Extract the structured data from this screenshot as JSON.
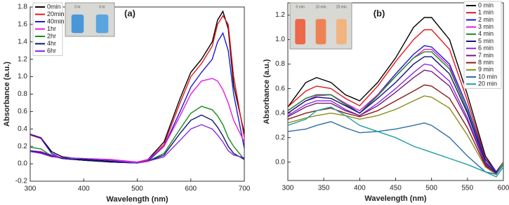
{
  "chart_data": [
    {
      "type": "line",
      "title": "(a)",
      "x_label": "Wavelength (nm)",
      "y_label": "Absorbance (a.u.)",
      "x": [
        300,
        320,
        340,
        360,
        400,
        450,
        500,
        520,
        550,
        580,
        600,
        620,
        640,
        650,
        660,
        670,
        680,
        700
      ],
      "xlim": [
        300,
        700
      ],
      "xticks": [
        300,
        400,
        500,
        600,
        700
      ],
      "ylim": [
        -0.2,
        1.8
      ],
      "yticks": [
        -0.2,
        {
          "value": 0,
          "label": "0.0"
        },
        0.2,
        0.4,
        0.6,
        0.8,
        {
          "value": 1,
          "label": "1.0"
        },
        1.2,
        1.4,
        1.6,
        1.8
      ],
      "inset_labels": [
        "0 hr",
        "6 hr"
      ],
      "series": [
        {
          "name": "0min",
          "color": "#000000",
          "values": [
            0.34,
            0.3,
            0.14,
            0.08,
            0.05,
            0.03,
            0.01,
            0.05,
            0.25,
            0.75,
            1.05,
            1.2,
            1.4,
            1.65,
            1.75,
            1.55,
            0.9,
            0.35
          ]
        },
        {
          "name": "20min",
          "color": "#e3161b",
          "values": [
            0.33,
            0.29,
            0.12,
            0.06,
            0.04,
            0.02,
            0.01,
            0.04,
            0.22,
            0.7,
            1.0,
            1.15,
            1.35,
            1.6,
            1.7,
            1.6,
            1.0,
            0.3
          ]
        },
        {
          "name": "40min",
          "color": "#1a1ad6",
          "values": [
            0.34,
            0.3,
            0.12,
            0.06,
            0.04,
            0.02,
            0.01,
            0.03,
            0.2,
            0.6,
            0.88,
            1.05,
            1.2,
            1.4,
            1.5,
            1.3,
            0.8,
            0.18
          ]
        },
        {
          "name": "1hr",
          "color": "#e01ee0",
          "values": [
            0.15,
            0.14,
            0.1,
            0.07,
            0.06,
            0.05,
            0.02,
            0.05,
            0.2,
            0.55,
            0.8,
            0.95,
            0.98,
            0.95,
            0.85,
            0.7,
            0.5,
            0.25
          ]
        },
        {
          "name": "2hr",
          "color": "#1a8a1a",
          "values": [
            0.19,
            0.17,
            0.09,
            0.06,
            0.04,
            0.02,
            0.01,
            0.03,
            0.12,
            0.4,
            0.58,
            0.66,
            0.62,
            0.55,
            0.45,
            0.3,
            0.2,
            0.05
          ]
        },
        {
          "name": "4hr",
          "color": "#12127a",
          "values": [
            0.15,
            0.13,
            0.09,
            0.06,
            0.04,
            0.02,
            0.01,
            0.03,
            0.1,
            0.35,
            0.5,
            0.56,
            0.5,
            0.42,
            0.32,
            0.2,
            0.12,
            0.05
          ]
        },
        {
          "name": "6hr",
          "color": "#8a2be2",
          "values": [
            0.14,
            0.12,
            0.08,
            0.07,
            0.06,
            0.04,
            0.01,
            0.03,
            0.08,
            0.27,
            0.4,
            0.45,
            0.4,
            0.33,
            0.25,
            0.15,
            0.1,
            0.07
          ]
        }
      ]
    },
    {
      "type": "line",
      "title": "(b)",
      "x_label": "Wavelength (nm)",
      "y_label": "Absorbance (a.u.)",
      "x": [
        300,
        325,
        340,
        360,
        380,
        400,
        425,
        450,
        475,
        490,
        500,
        525,
        550,
        575,
        590,
        600
      ],
      "xlim": [
        300,
        600
      ],
      "xticks": [
        300,
        350,
        400,
        450,
        500,
        550,
        600
      ],
      "ylim": [
        -0.15,
        1.3
      ],
      "yticks": [
        {
          "value": 0,
          "label": "0.0"
        },
        0.2,
        0.4,
        0.6,
        0.8,
        {
          "value": 1,
          "label": "1.0"
        },
        1.2
      ],
      "inset_labels": [
        "0 min",
        "10 min",
        "20 min"
      ],
      "series": [
        {
          "name": "0 min",
          "color": "#000000",
          "values": [
            0.45,
            0.65,
            0.69,
            0.65,
            0.55,
            0.5,
            0.65,
            0.85,
            1.1,
            1.18,
            1.18,
            1.0,
            0.55,
            0.05,
            -0.08,
            0.0
          ]
        },
        {
          "name": "1 min",
          "color": "#e3161b",
          "values": [
            0.45,
            0.58,
            0.62,
            0.6,
            0.52,
            0.46,
            0.62,
            0.82,
            1.0,
            1.08,
            1.08,
            0.92,
            0.5,
            0.03,
            -0.08,
            0.0
          ]
        },
        {
          "name": "2 min",
          "color": "#1a1ad6",
          "values": [
            0.42,
            0.52,
            0.55,
            0.55,
            0.48,
            0.4,
            0.55,
            0.72,
            0.88,
            0.95,
            0.94,
            0.8,
            0.45,
            0.02,
            -0.08,
            0.0
          ]
        },
        {
          "name": "3 min",
          "color": "#e01ee0",
          "values": [
            0.4,
            0.5,
            0.54,
            0.55,
            0.48,
            0.42,
            0.55,
            0.7,
            0.85,
            0.92,
            0.92,
            0.78,
            0.42,
            0.0,
            -0.09,
            0.0
          ]
        },
        {
          "name": "4 min",
          "color": "#1a8a1a",
          "values": [
            0.42,
            0.52,
            0.55,
            0.55,
            0.47,
            0.4,
            0.54,
            0.7,
            0.85,
            0.9,
            0.9,
            0.76,
            0.42,
            0.0,
            -0.09,
            0.0
          ]
        },
        {
          "name": "5 min",
          "color": "#12127a",
          "values": [
            0.4,
            0.5,
            0.53,
            0.52,
            0.46,
            0.4,
            0.52,
            0.65,
            0.8,
            0.86,
            0.86,
            0.72,
            0.4,
            0.0,
            -0.09,
            0.0
          ]
        },
        {
          "name": "6 min",
          "color": "#8a2be2",
          "values": [
            0.38,
            0.47,
            0.5,
            0.5,
            0.43,
            0.38,
            0.48,
            0.6,
            0.73,
            0.8,
            0.79,
            0.66,
            0.36,
            -0.01,
            -0.1,
            0.0
          ]
        },
        {
          "name": "7 min",
          "color": "#7a1a7a",
          "values": [
            0.37,
            0.45,
            0.48,
            0.48,
            0.42,
            0.38,
            0.46,
            0.57,
            0.69,
            0.75,
            0.74,
            0.62,
            0.34,
            -0.02,
            -0.1,
            0.0
          ]
        },
        {
          "name": "8 min",
          "color": "#8b1a1a",
          "values": [
            0.35,
            0.4,
            0.42,
            0.44,
            0.4,
            0.37,
            0.42,
            0.5,
            0.58,
            0.63,
            0.62,
            0.52,
            0.28,
            -0.03,
            -0.1,
            0.0
          ]
        },
        {
          "name": "9 min",
          "color": "#8b8b1a",
          "values": [
            0.32,
            0.36,
            0.38,
            0.4,
            0.38,
            0.35,
            0.38,
            0.43,
            0.5,
            0.54,
            0.53,
            0.44,
            0.22,
            -0.04,
            -0.1,
            0.0
          ]
        },
        {
          "name": "10 min",
          "color": "#2e6da4",
          "values": [
            0.25,
            0.27,
            0.3,
            0.33,
            0.28,
            0.24,
            0.25,
            0.27,
            0.3,
            0.32,
            0.3,
            0.2,
            0.05,
            -0.08,
            -0.1,
            -0.02
          ]
        },
        {
          "name": "20 min",
          "color": "#1fa0a0",
          "values": [
            0.3,
            0.35,
            0.42,
            0.45,
            0.38,
            0.3,
            0.25,
            0.2,
            0.13,
            0.1,
            0.08,
            0.03,
            -0.02,
            -0.08,
            -0.12,
            -0.04
          ]
        }
      ]
    }
  ]
}
